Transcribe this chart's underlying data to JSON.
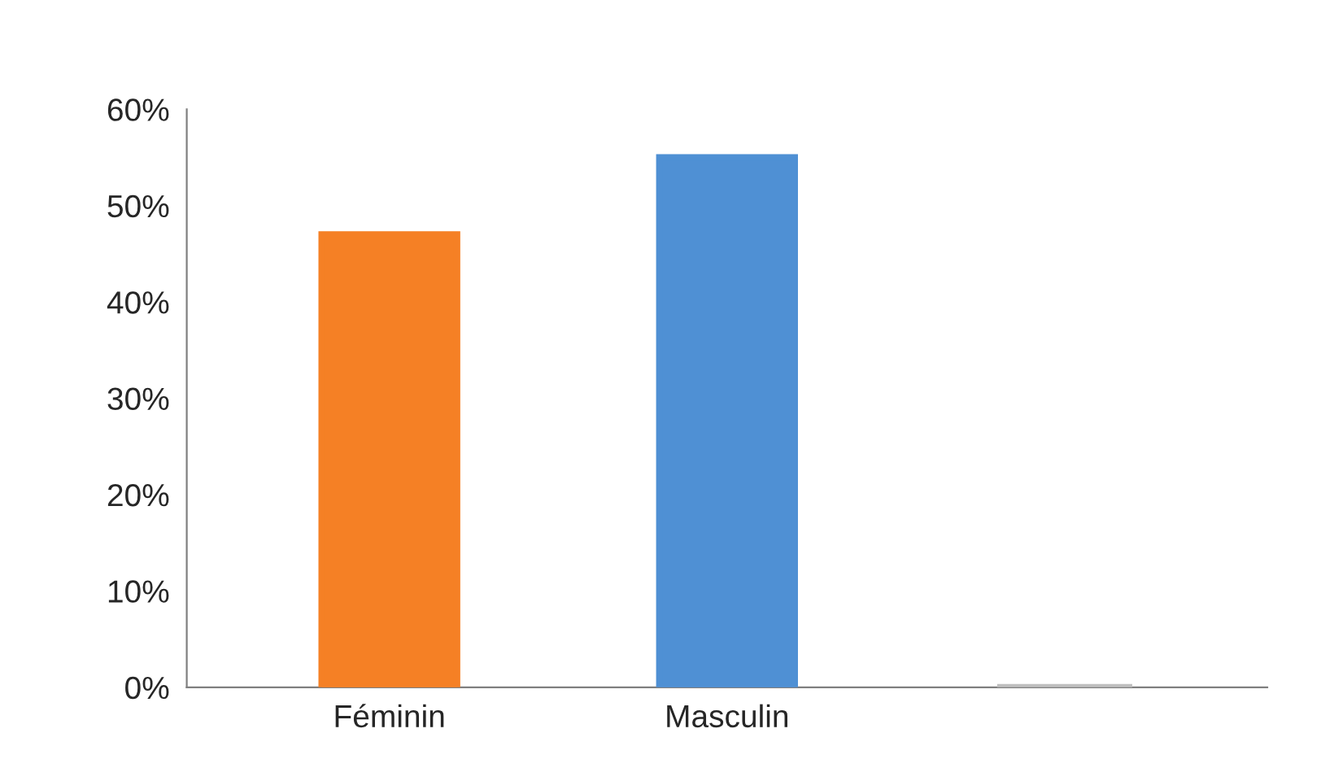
{
  "chart_data": {
    "type": "bar",
    "categories": [
      "Féminin",
      "Masculin",
      null
    ],
    "values": [
      47,
      55,
      0
    ],
    "colors": [
      "#f58025",
      "#4f90d4",
      "#bfbfbf"
    ],
    "ylim": [
      0,
      60
    ],
    "yticks": [
      {
        "value": 0,
        "label": "0%"
      },
      {
        "value": 10,
        "label": "10%"
      },
      {
        "value": 20,
        "label": "20%"
      },
      {
        "value": 30,
        "label": "30%"
      },
      {
        "value": 40,
        "label": "40%"
      },
      {
        "value": 50,
        "label": "50%"
      },
      {
        "value": 60,
        "label": "60%"
      }
    ],
    "grid": false,
    "legend": false
  }
}
